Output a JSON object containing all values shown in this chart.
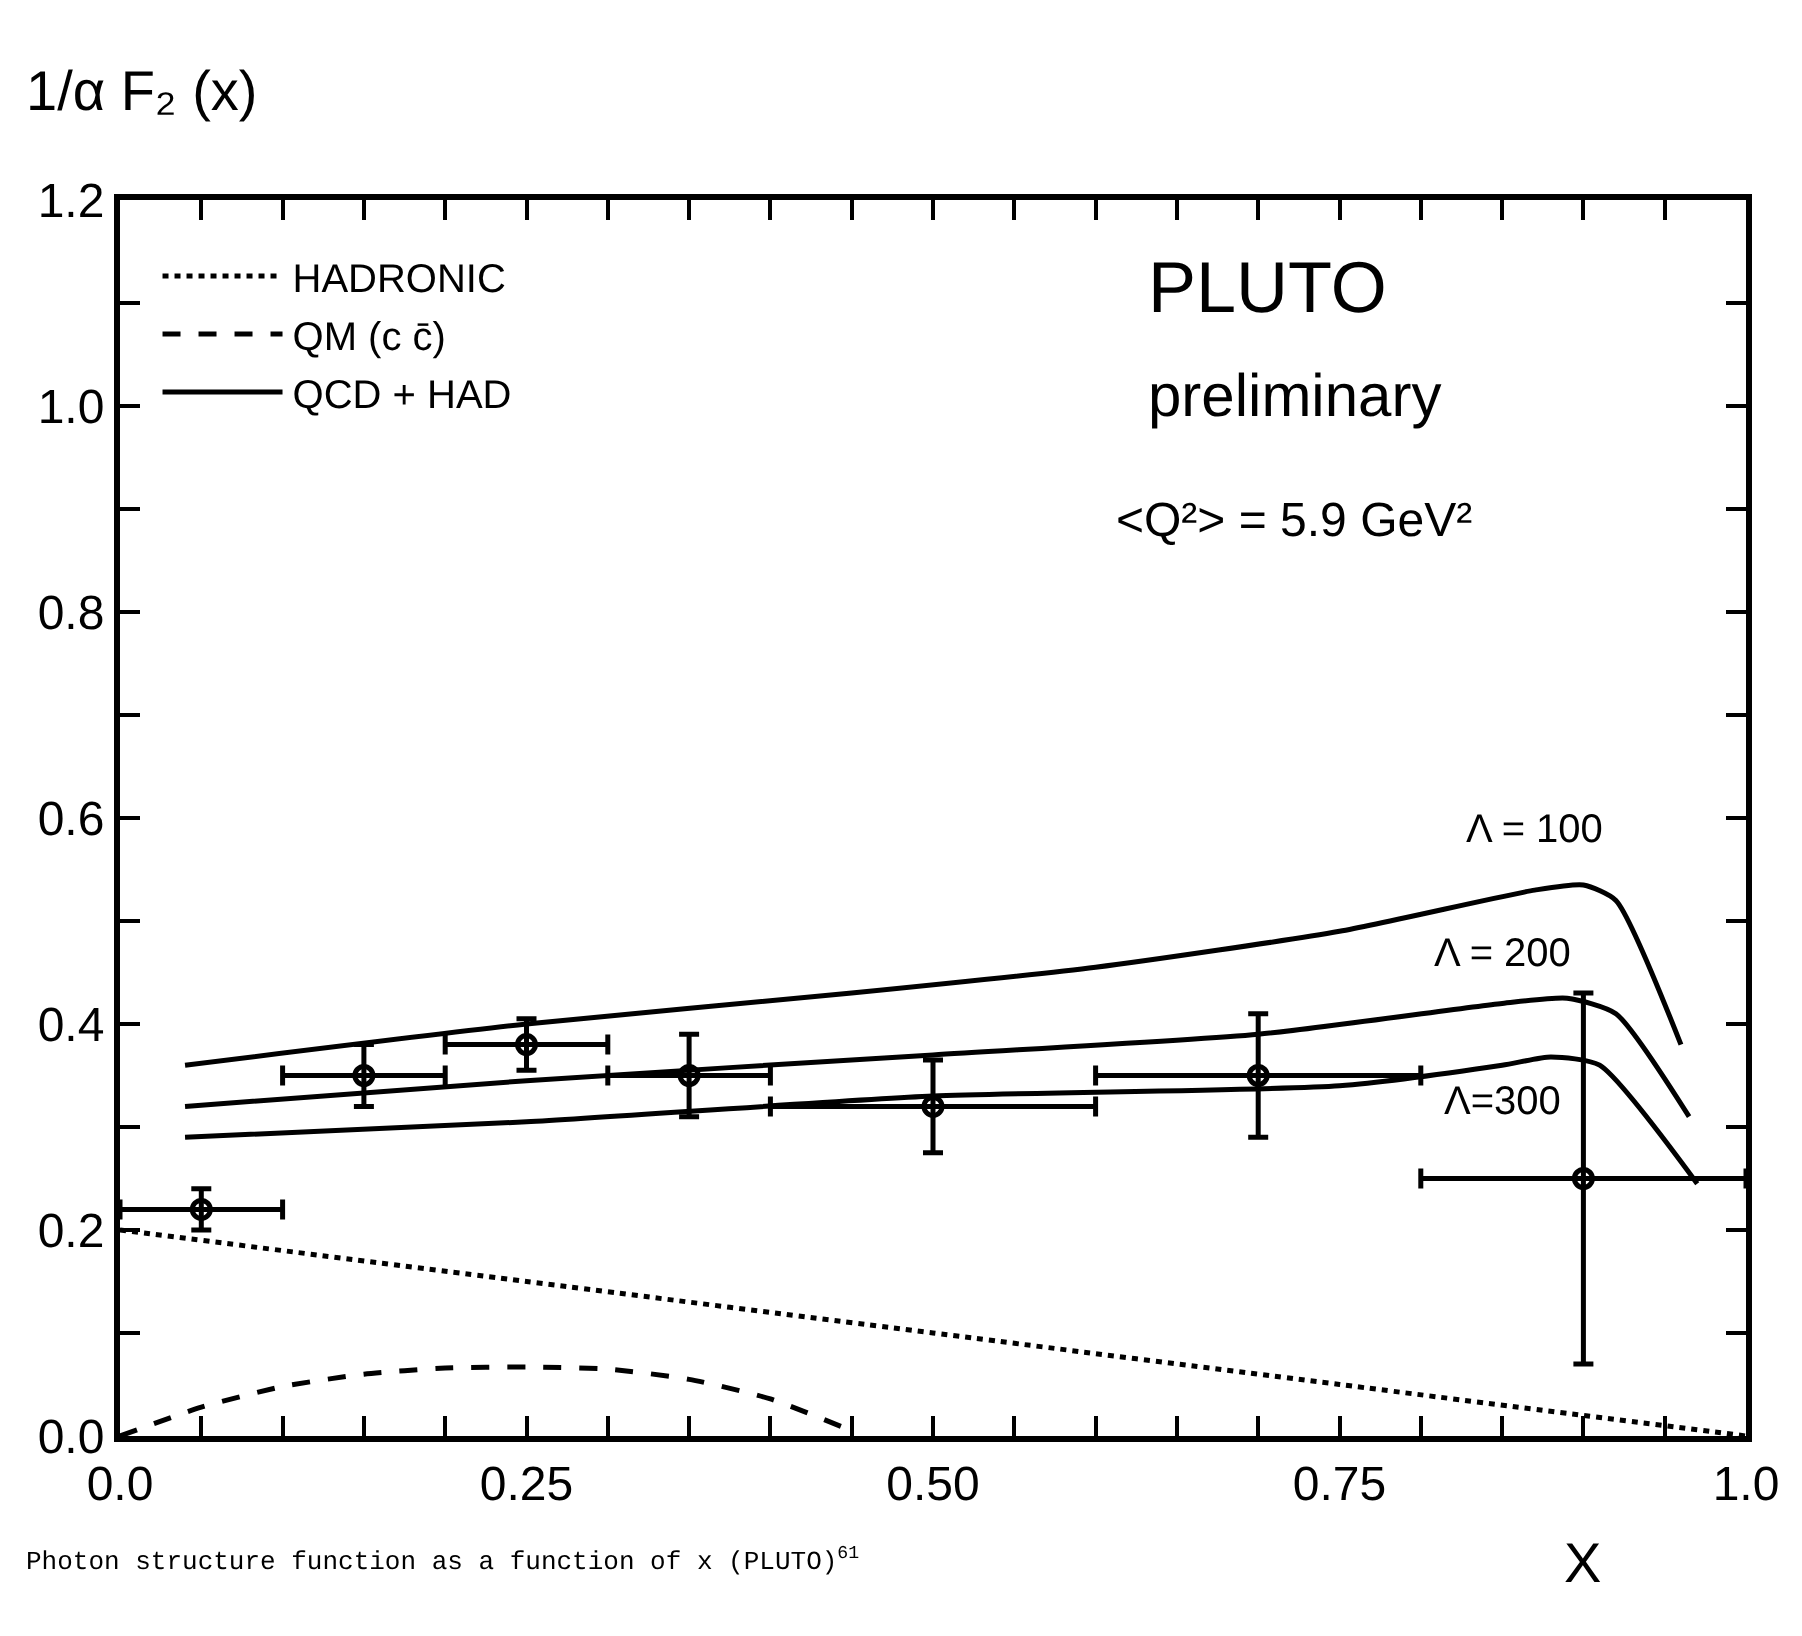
{
  "chart_data": {
    "type": "line",
    "xlabel": "X",
    "ylabel": "1/α F₂ (x)",
    "xlim": [
      0,
      1
    ],
    "ylim": [
      0,
      1.2
    ],
    "xticks": [
      {
        "value": 0,
        "label": "0.0"
      },
      {
        "value": 0.05,
        "label": null
      },
      {
        "value": 0.1,
        "label": null
      },
      {
        "value": 0.15,
        "label": null
      },
      {
        "value": 0.2,
        "label": null
      },
      {
        "value": 0.25,
        "label": "0.25"
      },
      {
        "value": 0.3,
        "label": null
      },
      {
        "value": 0.35,
        "label": null
      },
      {
        "value": 0.4,
        "label": null
      },
      {
        "value": 0.45,
        "label": null
      },
      {
        "value": 0.5,
        "label": "0.50"
      },
      {
        "value": 0.55,
        "label": null
      },
      {
        "value": 0.6,
        "label": null
      },
      {
        "value": 0.65,
        "label": null
      },
      {
        "value": 0.7,
        "label": null
      },
      {
        "value": 0.75,
        "label": "0.75"
      },
      {
        "value": 0.8,
        "label": null
      },
      {
        "value": 0.85,
        "label": null
      },
      {
        "value": 0.9,
        "label": null
      },
      {
        "value": 0.95,
        "label": null
      },
      {
        "value": 1,
        "label": "1.0"
      }
    ],
    "yticks": [
      {
        "value": 0,
        "label": "0.0"
      },
      {
        "value": 0.1,
        "label": null
      },
      {
        "value": 0.2,
        "label": "0.2"
      },
      {
        "value": 0.3,
        "label": null
      },
      {
        "value": 0.4,
        "label": "0.4"
      },
      {
        "value": 0.5,
        "label": null
      },
      {
        "value": 0.6,
        "label": "0.6"
      },
      {
        "value": 0.7,
        "label": null
      },
      {
        "value": 0.8,
        "label": "0.8"
      },
      {
        "value": 0.9,
        "label": null
      },
      {
        "value": 1,
        "label": "1.0"
      },
      {
        "value": 1.1,
        "label": null
      },
      {
        "value": 1.2,
        "label": "1.2"
      }
    ],
    "grid": false,
    "legend": "top left",
    "series": [
      {
        "name": "HADRONIC",
        "color": "#000000",
        "line_style": "dotted",
        "x": [
          0,
          0.25,
          0.5,
          0.75,
          1
        ],
        "values": [
          0.2,
          0.15,
          0.1,
          0.05,
          0
        ]
      },
      {
        "name": "QM (c c̄)",
        "color": "#000000",
        "line_style": "dashed",
        "x": [
          0,
          0.05,
          0.1,
          0.15,
          0.2,
          0.25,
          0.3,
          0.35,
          0.4,
          0.45
        ],
        "values": [
          0,
          0.028,
          0.048,
          0.06,
          0.066,
          0.067,
          0.065,
          0.055,
          0.036,
          0.005
        ]
      },
      {
        "name": "QCD + HAD",
        "color": "#000000",
        "line_style": "solid",
        "x": [
          0.04,
          0.25,
          0.45,
          0.6,
          0.75,
          0.87,
          0.9,
          0.92,
          0.96
        ],
        "values": [
          0.36,
          0.4,
          0.43,
          0.455,
          0.49,
          0.53,
          0.535,
          0.52,
          0.38
        ]
      },
      {
        "color": "#000000",
        "line_style": "solid",
        "x": [
          0.04,
          0.25,
          0.5,
          0.7,
          0.85,
          0.89,
          0.92,
          0.965
        ],
        "values": [
          0.32,
          0.345,
          0.37,
          0.39,
          0.42,
          0.425,
          0.41,
          0.31
        ]
      },
      {
        "color": "#000000",
        "line_style": "solid",
        "x": [
          0.04,
          0.25,
          0.5,
          0.75,
          0.85,
          0.88,
          0.91,
          0.97
        ],
        "values": [
          0.29,
          0.305,
          0.33,
          0.34,
          0.36,
          0.368,
          0.36,
          0.245
        ]
      },
      {
        "type": "scatter",
        "color": "#000000",
        "marker": "circle",
        "x": [
          0.05,
          0.15,
          0.25,
          0.35,
          0.5,
          0.7,
          0.9
        ],
        "values": [
          0.22,
          0.35,
          0.38,
          0.35,
          0.32,
          0.35,
          0.25
        ],
        "errors": [
          0.02,
          0.03,
          0.025,
          0.04,
          0.045,
          0.06,
          [
            0.07,
            0.43
          ]
        ],
        "xerrors": [
          0.05,
          0.05,
          0.05,
          0.05,
          0.1,
          0.1,
          0.1
        ]
      }
    ],
    "annotations": [
      "PLUTO",
      "preliminary",
      "<Q²> = 5.9 GeV²",
      "Photon structure function as a function of x (PLUTO)$^{61}$",
      "Λ = 100",
      "Λ = 200",
      "Λ=300"
    ]
  }
}
